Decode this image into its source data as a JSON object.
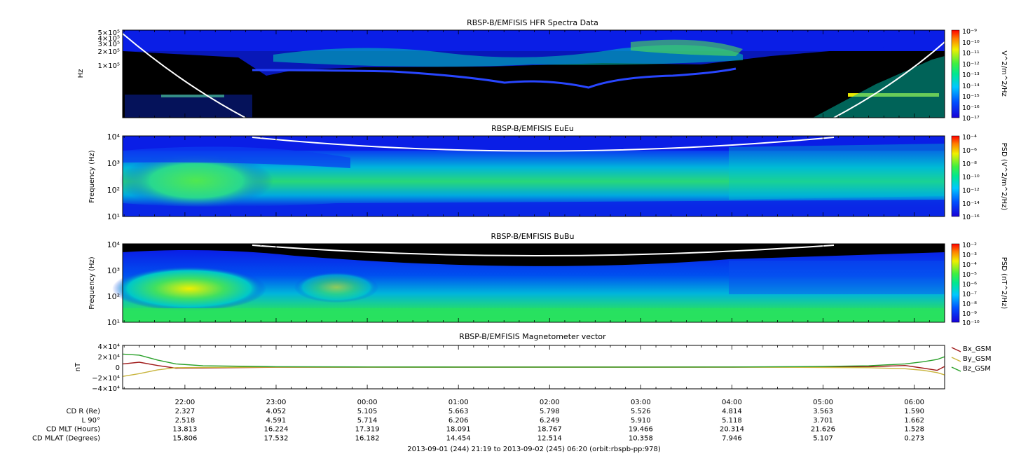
{
  "panels": [
    {
      "title": "RBSP-B/EMFISIS  HFR Spectra Data",
      "ylabel": "Hz",
      "yticks": [
        "5×10⁵",
        "4×10⁵",
        "3×10⁵",
        "2×10⁵",
        "1×10⁵"
      ],
      "cbar_label": "V^2/m^2/Hz",
      "cbar_ticks": [
        "10⁻⁹",
        "10⁻¹⁰",
        "10⁻¹¹",
        "10⁻¹²",
        "10⁻¹³",
        "10⁻¹⁴",
        "10⁻¹⁵",
        "10⁻¹⁶",
        "10⁻¹⁷"
      ]
    },
    {
      "title": "RBSP-B/EMFISIS  EuEu",
      "ylabel": "Frequency (Hz)",
      "yticks": [
        "10⁴",
        "10³",
        "10²",
        "10¹"
      ],
      "cbar_label": "PSD (V^2/m^2/Hz)",
      "cbar_ticks": [
        "10⁻⁴",
        "10⁻⁶",
        "10⁻⁸",
        "10⁻¹⁰",
        "10⁻¹²",
        "10⁻¹⁴",
        "10⁻¹⁶"
      ]
    },
    {
      "title": "RBSP-B/EMFISIS  BuBu",
      "ylabel": "Frequency (Hz)",
      "yticks": [
        "10⁴",
        "10³",
        "10²",
        "10¹"
      ],
      "cbar_label": "PSD (nT^2/Hz)",
      "cbar_ticks": [
        "10⁻²",
        "10⁻³",
        "10⁻⁴",
        "10⁻⁵",
        "10⁻⁶",
        "10⁻⁷",
        "10⁻⁸",
        "10⁻⁹",
        "10⁻¹⁰"
      ]
    },
    {
      "title": "RBSP-B/EMFISIS  Magnetometer vector",
      "ylabel": "nT",
      "yticks": [
        "4×10⁴",
        "2×10⁴",
        "0",
        "−2×10⁴",
        "−4×10⁴"
      ]
    }
  ],
  "time_ticks": [
    "22:00",
    "23:00",
    "00:00",
    "01:00",
    "02:00",
    "03:00",
    "04:00",
    "05:00",
    "06:00"
  ],
  "ephemeris": [
    {
      "label": "CD R (Re)",
      "values": [
        "2.327",
        "4.052",
        "5.105",
        "5.663",
        "5.798",
        "5.526",
        "4.814",
        "3.563",
        "1.590"
      ]
    },
    {
      "label": "L 90°",
      "values": [
        "2.518",
        "4.591",
        "5.714",
        "6.206",
        "6.249",
        "5.910",
        "5.118",
        "3.701",
        "1.662"
      ]
    },
    {
      "label": "CD MLT (Hours)",
      "values": [
        "13.813",
        "16.224",
        "17.319",
        "18.091",
        "18.767",
        "19.466",
        "20.314",
        "21.626",
        "1.528"
      ]
    },
    {
      "label": "CD MLAT (Degrees)",
      "values": [
        "15.806",
        "17.532",
        "16.182",
        "14.454",
        "12.514",
        "10.358",
        "7.946",
        "5.107",
        "0.273"
      ]
    }
  ],
  "footer": "2013-09-01 (244) 21:19 to 2013-09-02 (245) 06:20 (orbit:rbspb-pp:978)",
  "colors": {
    "background_black": "#000000",
    "spectrogram_blue": "#0a1ee6",
    "spectrogram_cyan": "#00d2d2",
    "spectrogram_green": "#2ee65a",
    "spectrogram_yellow": "#ffff00",
    "curve_white": "#ffffff",
    "bx": "#a01a1a",
    "by": "#c8b43c",
    "bz": "#28a028"
  },
  "chart_data": {
    "type": "line",
    "title": "RBSP-B/EMFISIS  Magnetometer vector",
    "ylabel": "nT",
    "ylim": [
      -40000,
      40000
    ],
    "x_unit": "hours from 2013-09-01 22:00 (UT)",
    "xlim": [
      -0.6833,
      8.3333
    ],
    "x": [
      -0.68,
      -0.5,
      -0.3,
      -0.1,
      0.2,
      1,
      2,
      3,
      4,
      5,
      6,
      7,
      7.5,
      7.9,
      8.1,
      8.25,
      8.33
    ],
    "series": [
      {
        "name": "Bx_GSM",
        "values": [
          6000,
          9000,
          3000,
          -2000,
          -1500,
          -300,
          -100,
          0,
          0,
          0,
          0,
          300,
          800,
          3000,
          -2000,
          -6000,
          1000
        ]
      },
      {
        "name": "By_GSM",
        "values": [
          -17000,
          -12000,
          -5000,
          -1000,
          -500,
          0,
          0,
          0,
          0,
          0,
          0,
          -500,
          -1000,
          -3000,
          -6000,
          -10000,
          -14000
        ]
      },
      {
        "name": "Bz_GSM",
        "values": [
          24000,
          22000,
          13000,
          6000,
          2500,
          800,
          300,
          150,
          150,
          150,
          300,
          1200,
          2500,
          6000,
          10000,
          14000,
          19000
        ]
      }
    ],
    "legend": "right"
  }
}
